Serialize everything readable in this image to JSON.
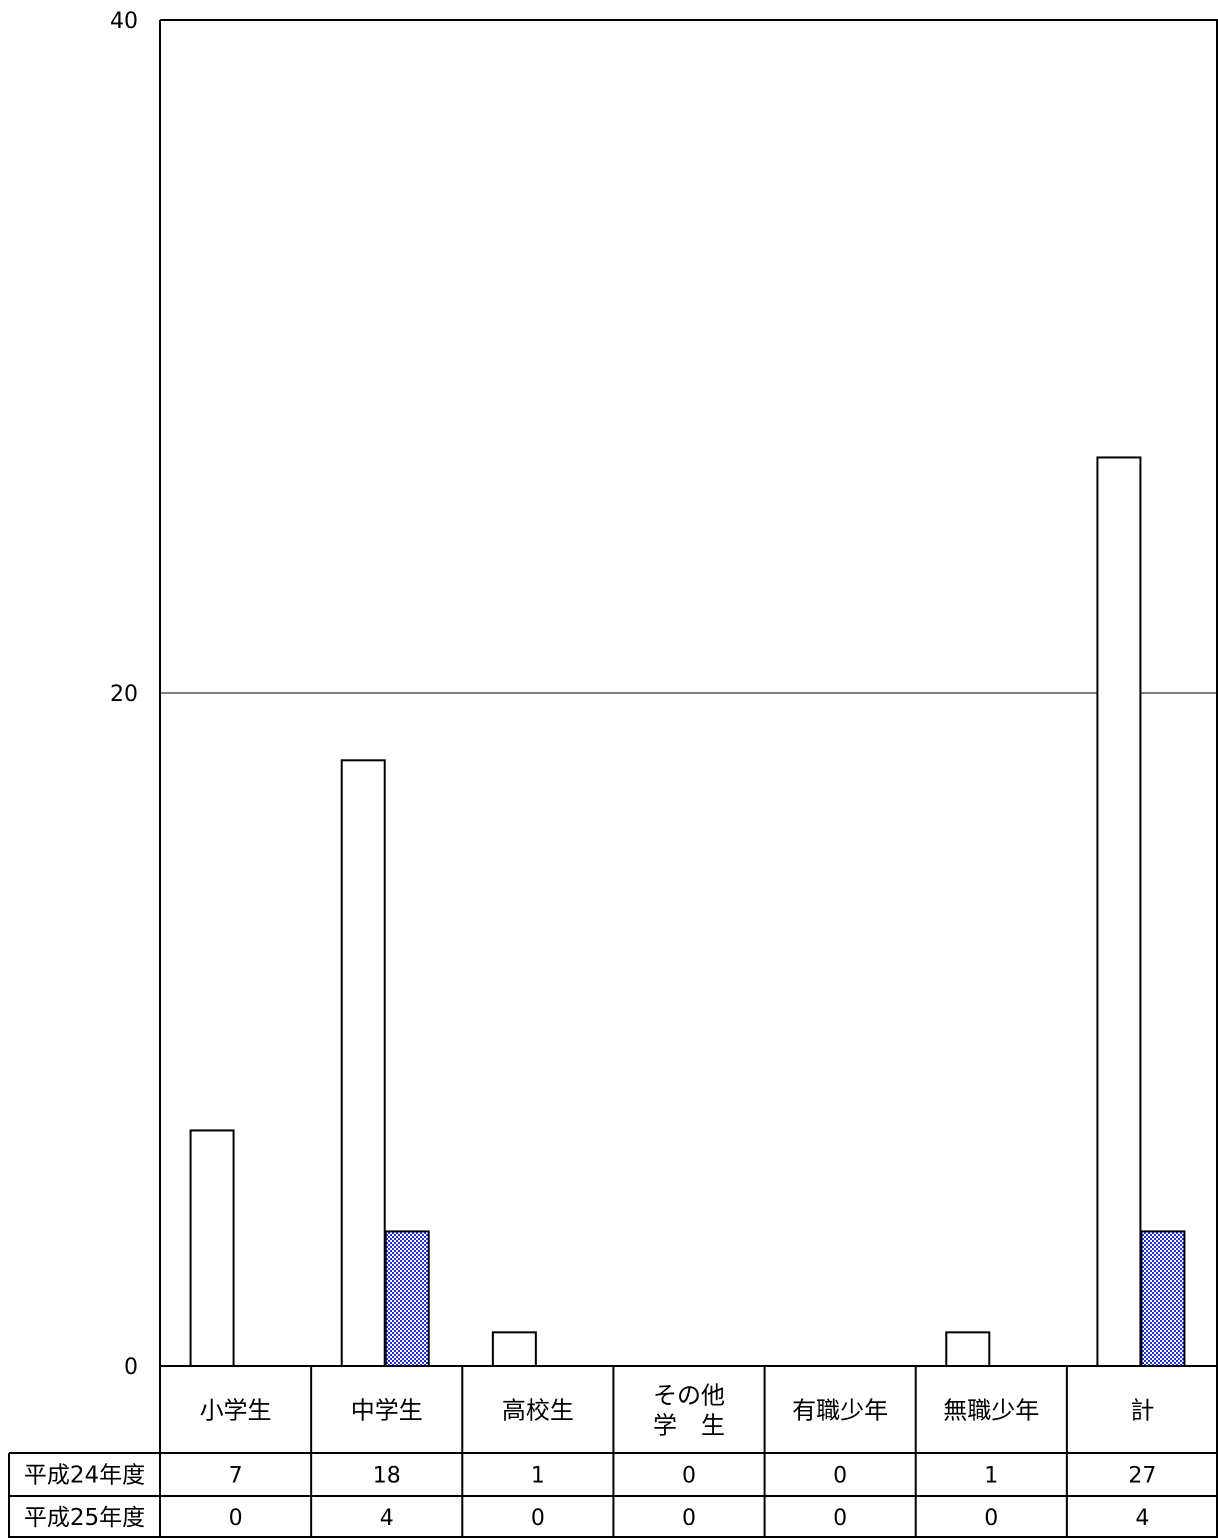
{
  "chart_data": {
    "type": "bar",
    "categories": [
      [
        "小学生"
      ],
      [
        "中学生"
      ],
      [
        "高校生"
      ],
      [
        "その他",
        "学　生"
      ],
      [
        "有職少年"
      ],
      [
        "無職少年"
      ],
      [
        "計"
      ]
    ],
    "series": [
      {
        "name": "平成24年度",
        "values": [
          7,
          18,
          1,
          0,
          0,
          1,
          27
        ],
        "color": "#ffffff",
        "pattern": "none"
      },
      {
        "name": "平成25年度",
        "values": [
          0,
          4,
          0,
          0,
          0,
          0,
          4
        ],
        "color": "#1f2bff",
        "pattern": "checker"
      }
    ],
    "y_ticks": [
      "0",
      "20",
      "40"
    ],
    "ylim": [
      0,
      40
    ],
    "gridlines": [
      20
    ],
    "legend": "data-table-bottom",
    "title": "",
    "xlabel": "",
    "ylabel": ""
  }
}
